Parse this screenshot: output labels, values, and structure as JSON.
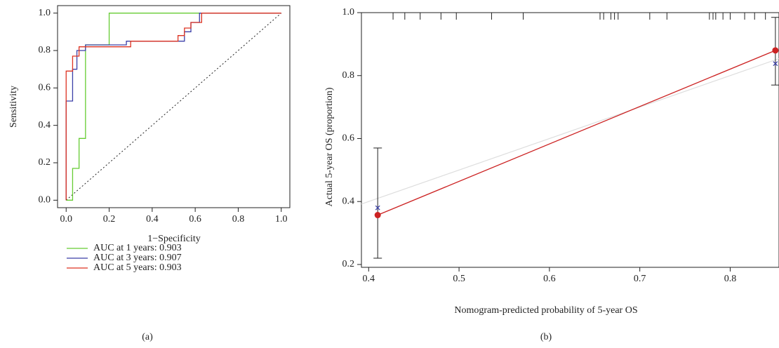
{
  "chart_data": [
    {
      "type": "roc",
      "xlabel": "1−Specificity",
      "ylabel": "Sensitivity",
      "panel_label": "(a)",
      "xlim": [
        -0.04,
        1.04
      ],
      "ylim": [
        -0.04,
        1.04
      ],
      "xticks": [
        {
          "value": 0,
          "label": "0.0"
        },
        0.2,
        0.4,
        0.6,
        0.8,
        {
          "value": 1,
          "label": "1.0"
        }
      ],
      "yticks": [
        {
          "value": 0,
          "label": "0.0"
        },
        0.2,
        0.4,
        0.6,
        0.8,
        {
          "value": 1,
          "label": "1.0"
        }
      ],
      "series": [
        {
          "name": "AUC at 1 years: 0.903",
          "color": "#66cc33",
          "x": [
            0,
            0.03,
            0.03,
            0.06,
            0.06,
            0.09,
            0.09,
            0.2,
            0.2,
            1
          ],
          "values": [
            0,
            0,
            0.17,
            0.17,
            0.33,
            0.33,
            0.83,
            0.83,
            1,
            1
          ]
        },
        {
          "name": "AUC at 3 years: 0.907",
          "color": "#3b3fa8",
          "x": [
            0,
            0,
            0.03,
            0.03,
            0.05,
            0.05,
            0.09,
            0.09,
            0.28,
            0.28,
            0.55,
            0.55,
            0.58,
            0.58,
            0.62,
            0.62,
            1
          ],
          "values": [
            0,
            0.53,
            0.53,
            0.7,
            0.7,
            0.8,
            0.8,
            0.83,
            0.83,
            0.85,
            0.85,
            0.9,
            0.9,
            0.95,
            0.95,
            1,
            1
          ]
        },
        {
          "name": "AUC at 5 years: 0.903",
          "color": "#dd3322",
          "x": [
            0,
            0,
            0.03,
            0.03,
            0.06,
            0.06,
            0.3,
            0.3,
            0.52,
            0.52,
            0.55,
            0.55,
            0.58,
            0.58,
            0.63,
            0.63,
            1
          ],
          "values": [
            0,
            0.69,
            0.69,
            0.77,
            0.77,
            0.82,
            0.82,
            0.85,
            0.85,
            0.88,
            0.88,
            0.92,
            0.92,
            0.95,
            0.95,
            1,
            1
          ]
        }
      ]
    },
    {
      "type": "calibration",
      "xlabel": "Nomogram-predicted probability of 5-year OS",
      "ylabel": "Actual 5-year OS (proportion)",
      "panel_label": "(b)",
      "xlim": [
        0.392,
        0.854
      ],
      "ylim": [
        0.191,
        1.0
      ],
      "xticks": [
        0.4,
        0.5,
        0.6,
        0.7,
        0.8
      ],
      "yticks": [
        0.2,
        0.4,
        0.6,
        0.8,
        {
          "value": 1,
          "label": "1.0"
        }
      ],
      "x": [
        0.41,
        0.85
      ],
      "observed": {
        "color": "#cc2222",
        "values": [
          0.357,
          0.88
        ],
        "ci_lower": [
          0.22,
          0.77
        ],
        "ci_upper": [
          0.57,
          0.985
        ]
      },
      "corrected": {
        "color": "#3b3fa8",
        "values": [
          0.38,
          0.838
        ]
      },
      "rug": [
        0.427,
        0.44,
        0.457,
        0.48,
        0.497,
        0.536,
        0.571,
        0.656,
        0.66,
        0.668,
        0.672,
        0.676,
        0.711,
        0.73,
        0.777,
        0.781,
        0.784,
        0.792,
        0.8,
        0.816,
        0.827,
        0.839
      ]
    }
  ]
}
